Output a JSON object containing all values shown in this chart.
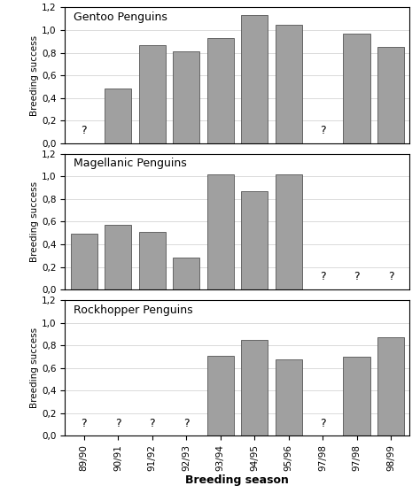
{
  "x_labels": [
    "89/90",
    "90/91",
    "91/92",
    "92/93",
    "93/94",
    "94/95",
    "95/96",
    "97/98",
    "97/98",
    "98/99"
  ],
  "gentoo": {
    "title": "Gentoo Penguins",
    "values": [
      null,
      0.48,
      0.87,
      0.81,
      0.93,
      1.13,
      1.05,
      null,
      0.97,
      0.85
    ]
  },
  "magellanic": {
    "title": "Magellanic Penguins",
    "values": [
      0.49,
      0.57,
      0.51,
      0.28,
      1.02,
      0.87,
      1.02,
      null,
      null,
      null
    ]
  },
  "rockhopper": {
    "title": "Rockhopper Penguins",
    "values": [
      null,
      null,
      null,
      null,
      0.71,
      0.85,
      0.68,
      null,
      0.7,
      0.87
    ]
  },
  "bar_color": "#a0a0a0",
  "bar_edge_color": "#555555",
  "ylim": [
    0,
    1.2
  ],
  "yticks": [
    0.0,
    0.2,
    0.4,
    0.6,
    0.8,
    1.0,
    1.2
  ],
  "ylabel": "Breeding success",
  "xlabel": "Breeding season",
  "question_fontsize": 9,
  "title_fontsize": 9,
  "tick_fontsize": 7.5,
  "xlabel_fontsize": 9
}
